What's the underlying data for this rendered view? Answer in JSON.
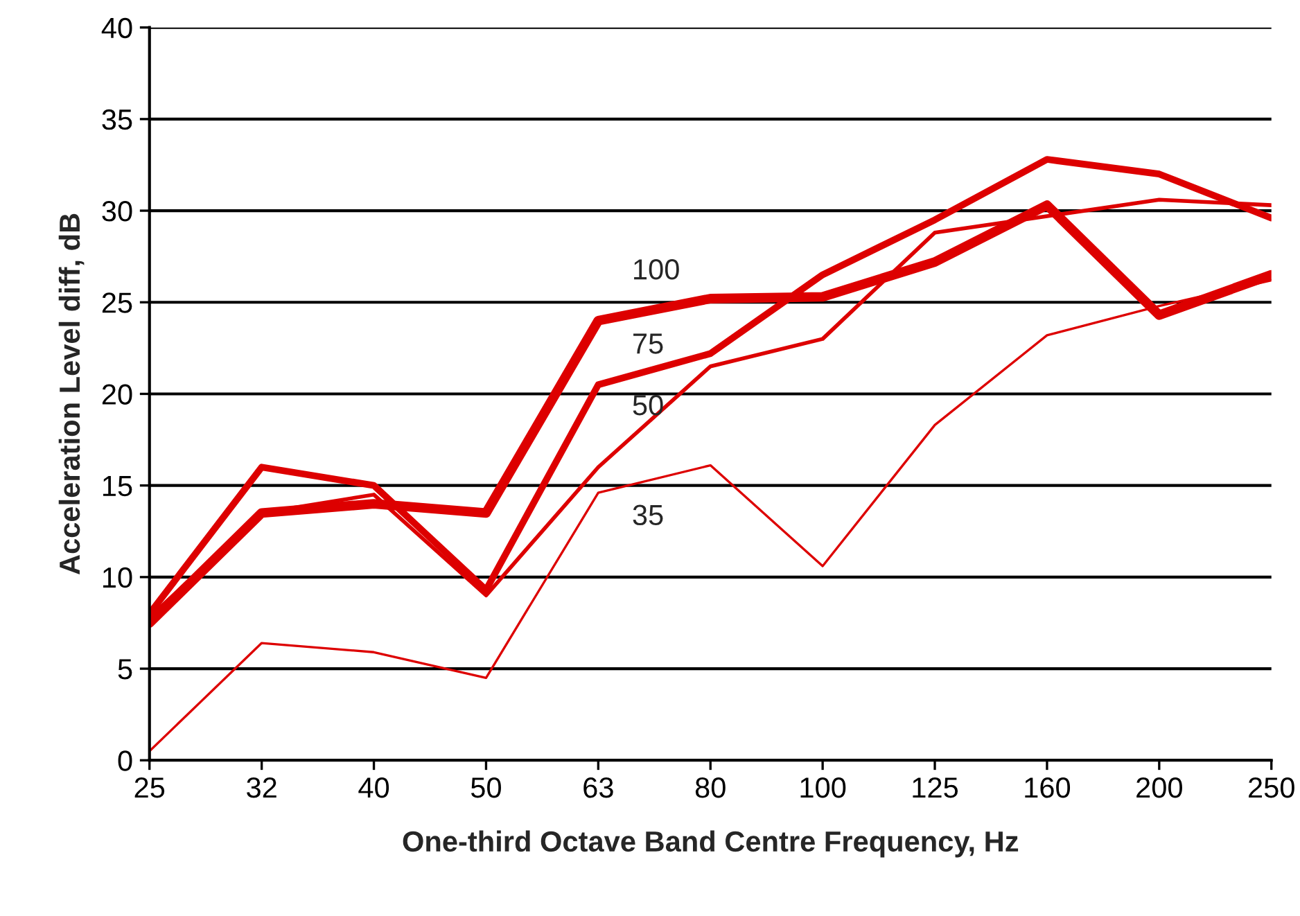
{
  "chart_data": {
    "type": "line",
    "xlabel": "One-third Octave Band Centre Frequency, Hz",
    "ylabel": "Acceleration Level diff, dB",
    "categories": [
      "25",
      "32",
      "40",
      "50",
      "63",
      "80",
      "100",
      "125",
      "160",
      "200",
      "250"
    ],
    "series": [
      {
        "name": "100",
        "color": "#dd0000",
        "values": [
          7.5,
          13.5,
          14,
          13.5,
          24,
          25.2,
          25.3,
          27.2,
          30.3,
          24.3,
          26.5
        ]
      },
      {
        "name": "75",
        "color": "#dd0000",
        "values": [
          8,
          16,
          15,
          9.3,
          20.5,
          22.2,
          26.5,
          29.5,
          32.8,
          32,
          29.6
        ]
      },
      {
        "name": "50",
        "color": "#dd0000",
        "values": [
          7.8,
          13.5,
          14.5,
          9,
          16,
          21.5,
          23,
          28.8,
          29.7,
          30.6,
          30.3
        ]
      },
      {
        "name": "35",
        "color": "#dd0000",
        "values": [
          0.5,
          6.4,
          5.9,
          4.5,
          14.6,
          16.1,
          10.6,
          18.3,
          23.2,
          24.8,
          26.2
        ]
      }
    ],
    "ylim": [
      0,
      40
    ],
    "yticks": [
      0,
      5,
      10,
      15,
      20,
      25,
      30,
      35,
      40
    ],
    "grid": "y",
    "marker": "none",
    "line_style": "solid"
  }
}
